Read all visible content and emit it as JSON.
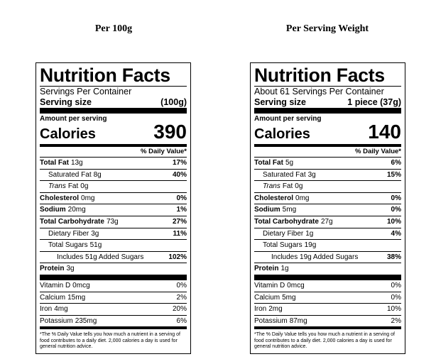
{
  "headings": [
    "Per 100g",
    "Per Serving Weight"
  ],
  "labels": [
    {
      "title": "Nutrition Facts",
      "servings": "Servings Per Container",
      "serving_size_label": "Serving size",
      "serving_size": "(100g)",
      "amount_per_serving": "Amount per serving",
      "calories_label": "Calories",
      "calories": "390",
      "daily_value_header": "% Daily Value*",
      "nutrients": [
        {
          "label": "Total Fat",
          "amount": "13g",
          "dv": "17%"
        },
        {
          "label": "Saturated Fat",
          "amount": "8g",
          "dv": "40%"
        },
        {
          "label_italic": "Trans",
          "label": "Fat",
          "amount": "0g"
        },
        {
          "label": "Cholesterol",
          "amount": "0mg",
          "dv": "0%"
        },
        {
          "label": "Sodium",
          "amount": "20mg",
          "dv": "1%"
        },
        {
          "label": "Total Carbohydrate",
          "amount": "73g",
          "dv": "27%"
        },
        {
          "label": "Dietary Fiber",
          "amount": "3g",
          "dv": "11%"
        },
        {
          "label": "Total Sugars",
          "amount": "51g"
        },
        {
          "label": "Includes 51g Added Sugars",
          "dv": "102%"
        },
        {
          "label": "Protein",
          "amount": "3g"
        }
      ],
      "vitamins": [
        {
          "label": "Vitamin D",
          "amount": "0mcg",
          "dv": "0%"
        },
        {
          "label": "Calcium",
          "amount": "15mg",
          "dv": "2%"
        },
        {
          "label": "Iron",
          "amount": "4mg",
          "dv": "20%"
        },
        {
          "label": "Potassium",
          "amount": "235mg",
          "dv": "6%"
        }
      ],
      "footnote": "*The % Daily Value tells you how much a nutrient in a serving of food contributes to a daily diet. 2,000 calories a day is used for general nutrition advice."
    },
    {
      "title": "Nutrition Facts",
      "servings": "About 61 Servings Per Container",
      "serving_size_label": "Serving size",
      "serving_size": "1 piece (37g)",
      "amount_per_serving": "Amount per serving",
      "calories_label": "Calories",
      "calories": "140",
      "daily_value_header": "% Daily Value*",
      "nutrients": [
        {
          "label": "Total Fat",
          "amount": "5g",
          "dv": "6%"
        },
        {
          "label": "Saturated Fat",
          "amount": "3g",
          "dv": "15%"
        },
        {
          "label_italic": "Trans",
          "label": "Fat",
          "amount": "0g"
        },
        {
          "label": "Cholesterol",
          "amount": "0mg",
          "dv": "0%"
        },
        {
          "label": "Sodium",
          "amount": "5mg",
          "dv": "0%"
        },
        {
          "label": "Total Carbohydrate",
          "amount": "27g",
          "dv": "10%"
        },
        {
          "label": "Dietary Fiber",
          "amount": "1g",
          "dv": "4%"
        },
        {
          "label": "Total Sugars",
          "amount": "19g"
        },
        {
          "label": "Includes 19g Added Sugars",
          "dv": "38%"
        },
        {
          "label": "Protein",
          "amount": "1g"
        }
      ],
      "vitamins": [
        {
          "label": "Vitamin D",
          "amount": "0mcg",
          "dv": "0%"
        },
        {
          "label": "Calcium",
          "amount": "5mg",
          "dv": "0%"
        },
        {
          "label": "Iron",
          "amount": "2mg",
          "dv": "10%"
        },
        {
          "label": "Potassium",
          "amount": "87mg",
          "dv": "2%"
        }
      ],
      "footnote": "*The % Daily Value tells you how much a nutrient in a serving of food contributes to a daily diet. 2,000 calories a day is used for general nutrition advice."
    }
  ]
}
